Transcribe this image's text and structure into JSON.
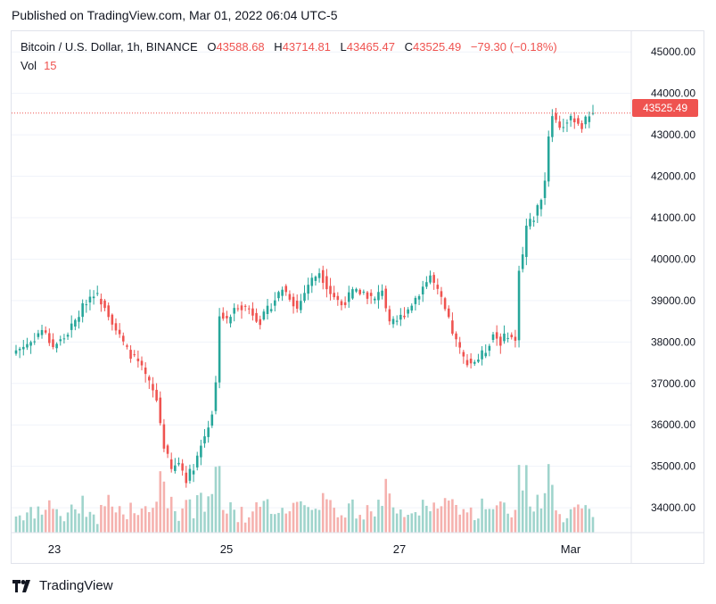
{
  "header": {
    "published": "Published on TradingView.com, Mar 01, 2022 06:04 UTC-5"
  },
  "legend": {
    "symbol": "Bitcoin / U.S. Dollar, 1h, BINANCE",
    "open_label": "O",
    "open": "43588.68",
    "high_label": "H",
    "high": "43714.81",
    "low_label": "L",
    "low": "43465.47",
    "close_label": "C",
    "close": "43525.49",
    "change": "−79.30 (−0.18%)",
    "vol_label": "Vol",
    "vol": "15"
  },
  "price_tag": "43525.49",
  "brand": {
    "name": "TradingView"
  },
  "colors": {
    "up": "#26a69a",
    "down": "#ef5350",
    "up_vol": "#9fd4cc",
    "down_vol": "#f5b1ae",
    "grid": "#f0f3fa"
  },
  "chart_data": {
    "type": "candlestick",
    "y_ticks": [
      "34000.00",
      "35000.00",
      "36000.00",
      "37000.00",
      "38000.00",
      "39000.00",
      "40000.00",
      "41000.00",
      "42000.00",
      "43000.00",
      "44000.00",
      "45000.00"
    ],
    "ylim": [
      33400,
      45500
    ],
    "x_ticks": [
      "23",
      "25",
      "27",
      "Mar"
    ],
    "last_price": 43525.49,
    "anchors": [
      [
        0,
        37800
      ],
      [
        4,
        38000
      ],
      [
        7,
        38300
      ],
      [
        10,
        37900
      ],
      [
        13,
        38100
      ],
      [
        16,
        38500
      ],
      [
        19,
        39000
      ],
      [
        21,
        39200
      ],
      [
        24,
        38900
      ],
      [
        27,
        38300
      ],
      [
        30,
        37800
      ],
      [
        33,
        37500
      ],
      [
        36,
        37000
      ],
      [
        38,
        36600
      ],
      [
        40,
        35500
      ],
      [
        42,
        34900
      ],
      [
        44,
        35100
      ],
      [
        46,
        34700
      ],
      [
        48,
        35000
      ],
      [
        50,
        35500
      ],
      [
        52,
        36000
      ],
      [
        53,
        36300
      ],
      [
        54,
        37000
      ],
      [
        55,
        38700
      ],
      [
        57,
        38500
      ],
      [
        60,
        38900
      ],
      [
        63,
        38800
      ],
      [
        66,
        38500
      ],
      [
        69,
        38900
      ],
      [
        72,
        39300
      ],
      [
        74,
        39100
      ],
      [
        76,
        38800
      ],
      [
        79,
        39400
      ],
      [
        82,
        39700
      ],
      [
        85,
        39200
      ],
      [
        88,
        38900
      ],
      [
        91,
        39200
      ],
      [
        94,
        39200
      ],
      [
        97,
        39000
      ],
      [
        99,
        39300
      ],
      [
        101,
        38400
      ],
      [
        103,
        38500
      ],
      [
        106,
        38800
      ],
      [
        109,
        39200
      ],
      [
        112,
        39600
      ],
      [
        115,
        39000
      ],
      [
        117,
        38500
      ],
      [
        119,
        38000
      ],
      [
        121,
        37600
      ],
      [
        123,
        37500
      ],
      [
        125,
        37600
      ],
      [
        127,
        37800
      ],
      [
        129,
        38200
      ],
      [
        131,
        38000
      ],
      [
        133,
        38200
      ],
      [
        135,
        38000
      ],
      [
        136,
        39800
      ],
      [
        137,
        40100
      ],
      [
        138,
        40800
      ],
      [
        140,
        41000
      ],
      [
        142,
        41500
      ],
      [
        143,
        41900
      ],
      [
        144,
        43000
      ],
      [
        145,
        43500
      ],
      [
        147,
        43200
      ],
      [
        149,
        43300
      ],
      [
        151,
        43400
      ],
      [
        153,
        43200
      ],
      [
        155,
        43500
      ],
      [
        156,
        43525.49
      ]
    ]
  }
}
